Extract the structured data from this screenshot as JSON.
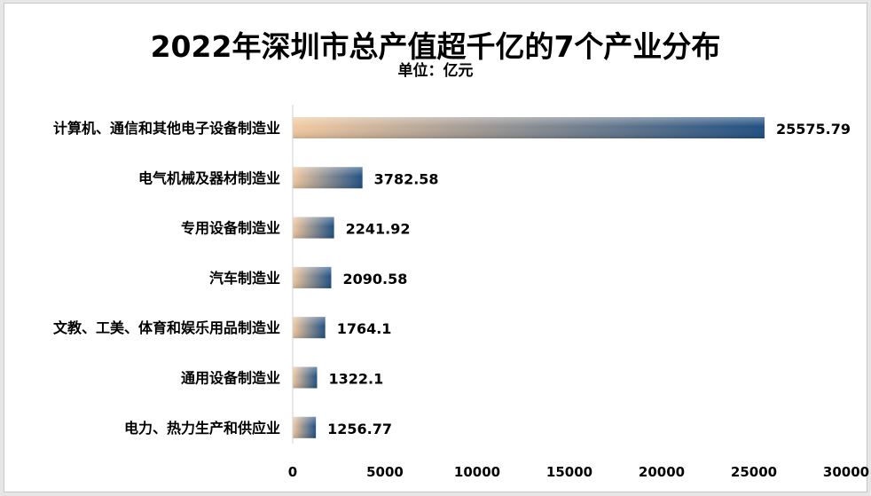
{
  "chart_data": {
    "type": "bar",
    "orientation": "horizontal",
    "title": "2022年深圳市总产值超千亿的7个产业分布",
    "subtitle": "单位：亿元",
    "categories": [
      "计算机、通信和其他电子设备制造业",
      "电气机械及器材制造业",
      "专用设备制造业",
      "汽车制造业",
      "文教、工美、体育和娱乐用品制造业",
      "通用设备制造业",
      "电力、热力生产和供应业"
    ],
    "values": [
      25575.79,
      3782.58,
      2241.92,
      2090.58,
      1764.1,
      1322.1,
      1256.77
    ],
    "value_labels": [
      "25575.79",
      "3782.58",
      "2241.92",
      "2090.58",
      "1764.1",
      "1322.1",
      "1256.77"
    ],
    "xlim": [
      0,
      30000
    ],
    "x_ticks": [
      "0",
      "5000",
      "10000",
      "15000",
      "20000",
      "25000",
      "30000"
    ],
    "grid": false,
    "legend": "none",
    "colors": {
      "bar_light": "#f2c9a0",
      "bar_dark": "#1f4f82"
    }
  }
}
